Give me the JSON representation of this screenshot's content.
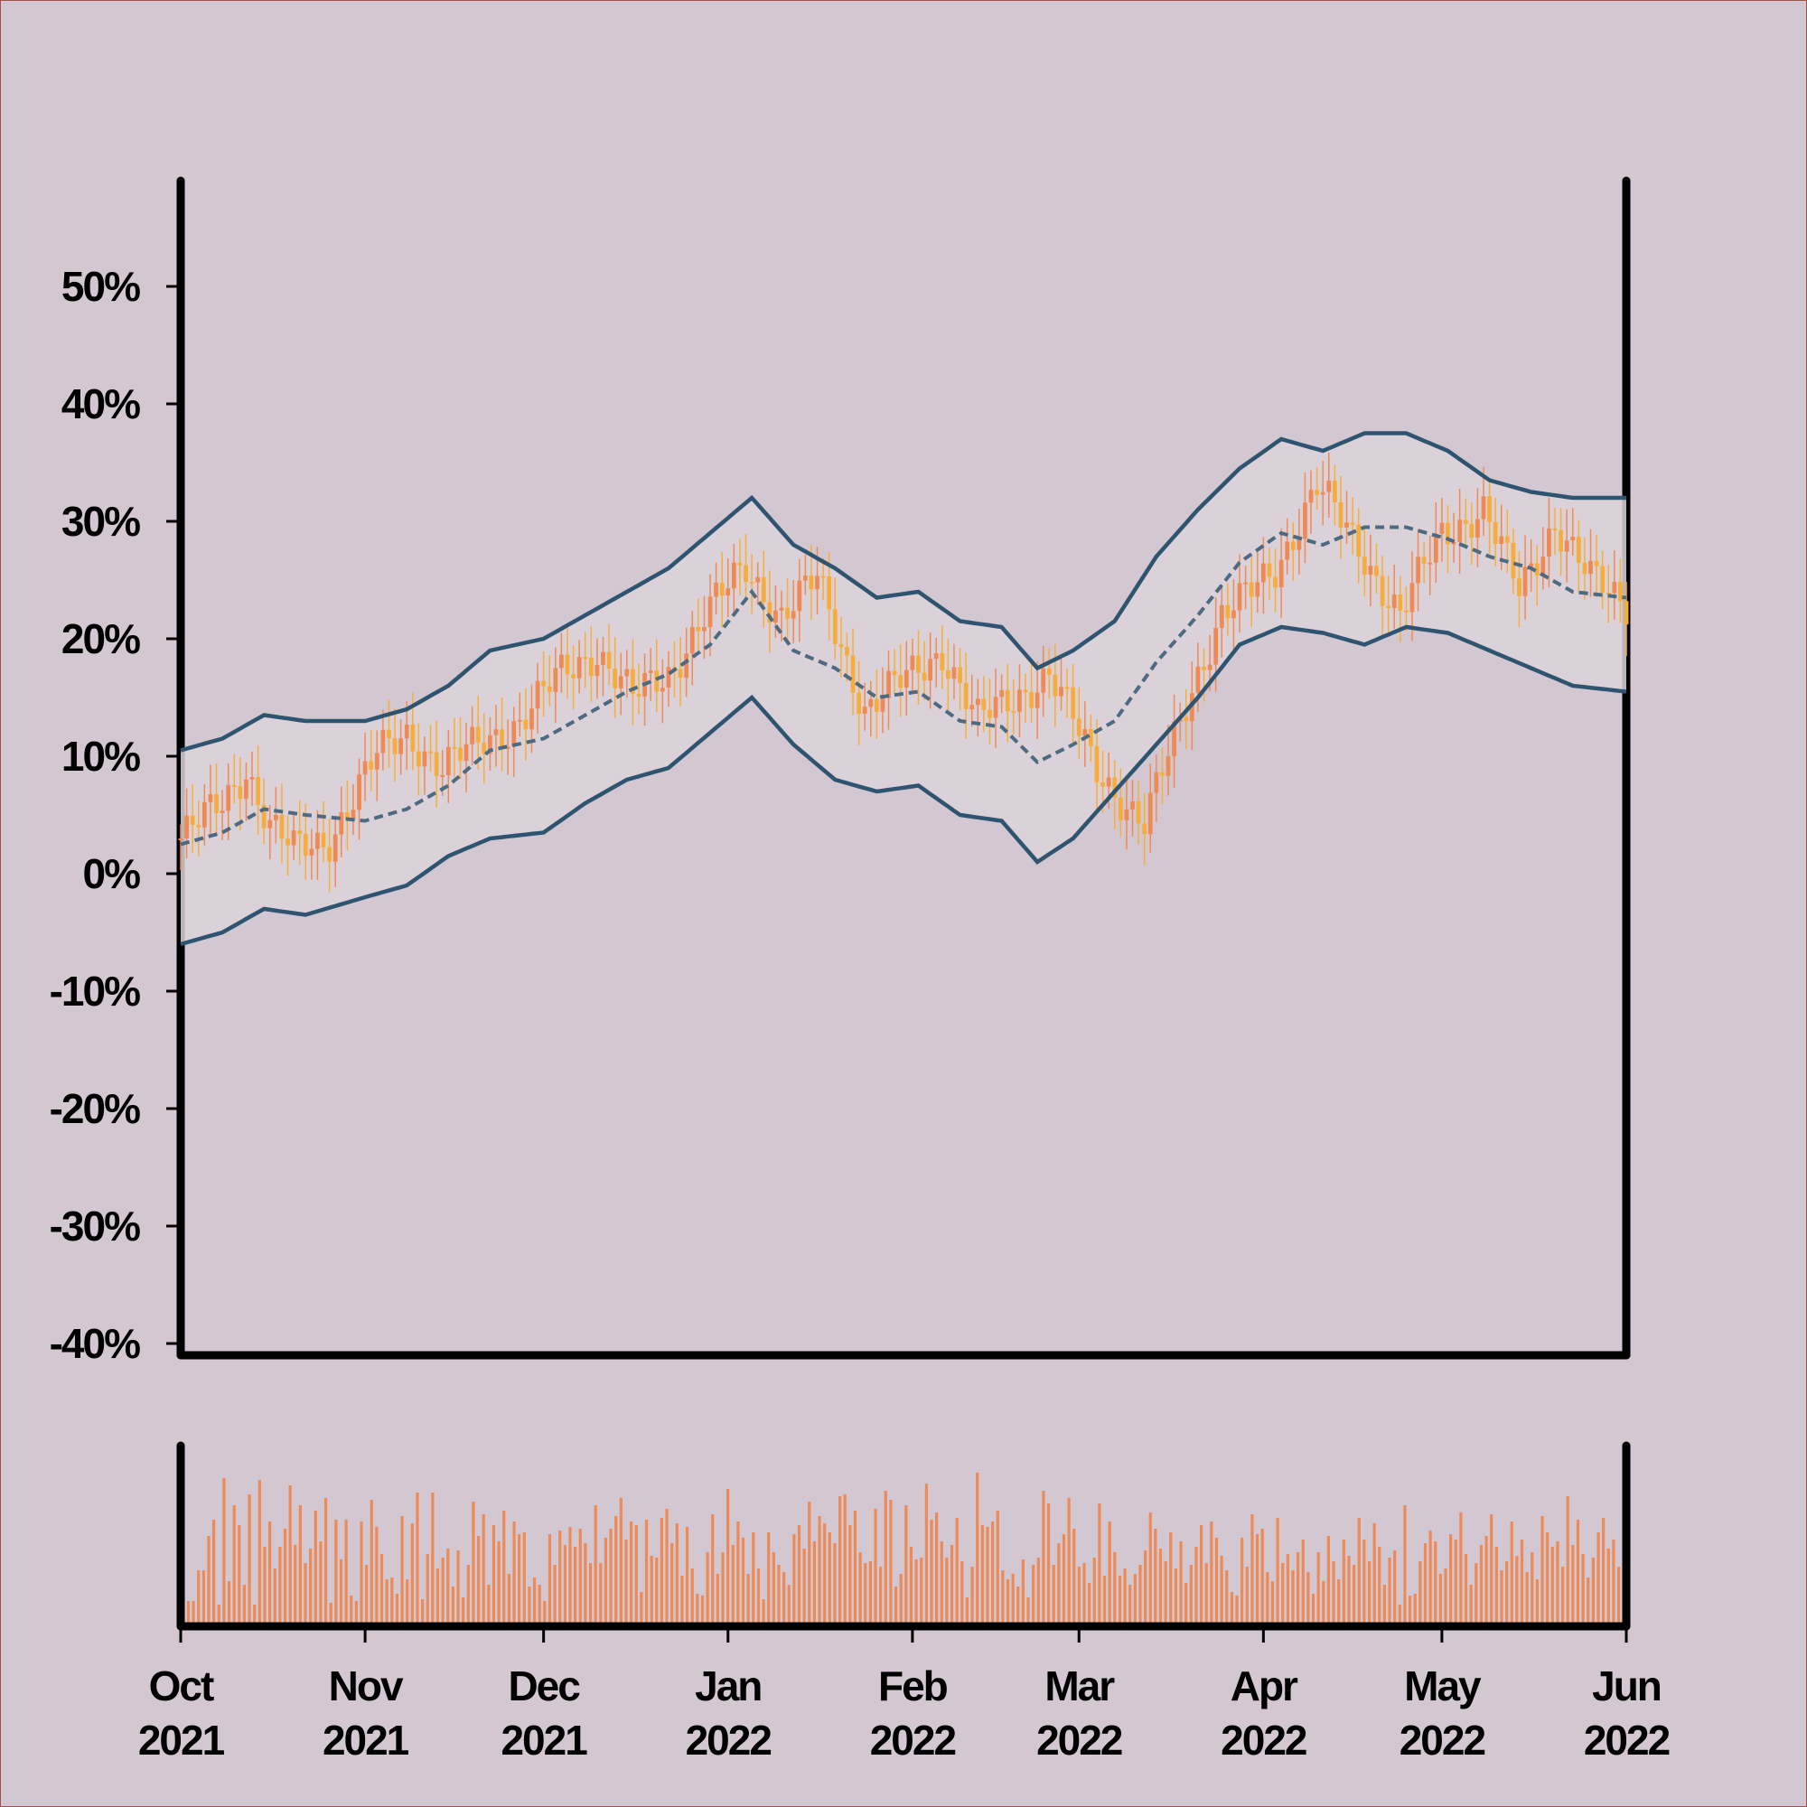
{
  "colors": {
    "background": "#d3c8d2",
    "band_fill": "#dcd4db",
    "band_line": "#2f5470",
    "mid_line": "#4e6a80",
    "candle_up": "#f08a55",
    "candle_down": "#f6ad3c",
    "volume_bar": "#ec8a58",
    "axis": "#000000"
  },
  "chart_data": {
    "type": "candlestick",
    "title": "",
    "xlabel": "",
    "ylabel": "",
    "price_axis": {
      "ylim": [
        -41,
        59
      ],
      "ticks": [
        50,
        40,
        30,
        20,
        10,
        0,
        -10,
        -20,
        -30,
        -40
      ],
      "tick_labels": [
        "50%",
        "40%",
        "30%",
        "20%",
        "10%",
        "0%",
        "-10%",
        "-20%",
        "-30%",
        "-40%"
      ]
    },
    "x_axis": {
      "start": "2021-10-01",
      "end": "2022-06-01",
      "ticks": [
        "2021-10-01",
        "2021-11-01",
        "2021-12-01",
        "2022-01-01",
        "2022-02-01",
        "2022-03-01",
        "2022-04-01",
        "2022-05-01",
        "2022-06-01"
      ],
      "tick_labels": [
        [
          "Oct",
          "2021"
        ],
        [
          "Nov",
          "2021"
        ],
        [
          "Dec",
          "2021"
        ],
        [
          "Jan",
          "2022"
        ],
        [
          "Feb",
          "2022"
        ],
        [
          "Mar",
          "2022"
        ],
        [
          "Apr",
          "2022"
        ],
        [
          "May",
          "2022"
        ],
        [
          "Jun",
          "2022"
        ]
      ]
    },
    "series": [
      {
        "role": "price_close",
        "x": [
          "2021-10-01",
          "2021-10-08",
          "2021-10-12",
          "2021-10-16",
          "2021-10-20",
          "2021-10-26",
          "2021-11-03",
          "2021-11-08",
          "2021-11-14",
          "2021-11-20",
          "2021-11-27",
          "2021-12-04",
          "2021-12-10",
          "2021-12-16",
          "2021-12-22",
          "2021-12-28",
          "2022-01-04",
          "2022-01-10",
          "2022-01-16",
          "2022-01-24",
          "2022-02-01",
          "2022-02-06",
          "2022-02-12",
          "2022-02-18",
          "2022-02-24",
          "2022-03-04",
          "2022-03-12",
          "2022-03-20",
          "2022-03-25",
          "2022-03-28",
          "2022-04-03",
          "2022-04-10",
          "2022-04-18",
          "2022-04-24",
          "2022-05-01",
          "2022-05-08",
          "2022-05-14",
          "2022-05-20",
          "2022-05-26",
          "2022-06-01"
        ],
        "values": [
          3,
          6,
          9,
          4,
          2,
          3,
          10,
          12,
          9,
          11,
          13,
          17,
          19,
          15,
          17,
          22,
          26,
          22,
          25,
          14,
          17,
          19,
          13,
          15,
          17,
          9,
          4,
          16,
          22,
          23,
          26,
          33,
          27,
          22,
          29,
          31,
          24,
          30,
          25,
          23
        ]
      },
      {
        "role": "band_upper",
        "x": [
          "2021-10-01",
          "2021-10-08",
          "2021-10-15",
          "2021-10-22",
          "2021-11-01",
          "2021-11-08",
          "2021-11-15",
          "2021-11-22",
          "2021-12-01",
          "2021-12-08",
          "2021-12-15",
          "2021-12-22",
          "2021-12-29",
          "2022-01-05",
          "2022-01-12",
          "2022-01-19",
          "2022-01-26",
          "2022-02-02",
          "2022-02-09",
          "2022-02-16",
          "2022-02-22",
          "2022-02-28",
          "2022-03-07",
          "2022-03-14",
          "2022-03-21",
          "2022-03-28",
          "2022-04-04",
          "2022-04-11",
          "2022-04-18",
          "2022-04-25",
          "2022-05-02",
          "2022-05-09",
          "2022-05-16",
          "2022-05-23",
          "2022-06-01"
        ],
        "values": [
          10.5,
          11.5,
          13.5,
          13,
          13,
          14,
          16,
          19,
          20,
          22,
          24,
          26,
          29,
          32,
          28,
          26,
          23.5,
          24,
          21.5,
          21,
          17.5,
          19,
          21.5,
          27,
          31,
          34.5,
          37,
          36,
          37.5,
          37.5,
          36,
          33.5,
          32.5,
          32,
          32
        ]
      },
      {
        "role": "band_middle",
        "x": [
          "2021-10-01",
          "2021-10-08",
          "2021-10-15",
          "2021-10-22",
          "2021-11-01",
          "2021-11-08",
          "2021-11-15",
          "2021-11-22",
          "2021-12-01",
          "2021-12-08",
          "2021-12-15",
          "2021-12-22",
          "2021-12-29",
          "2022-01-05",
          "2022-01-12",
          "2022-01-19",
          "2022-01-26",
          "2022-02-02",
          "2022-02-09",
          "2022-02-16",
          "2022-02-22",
          "2022-02-28",
          "2022-03-07",
          "2022-03-14",
          "2022-03-21",
          "2022-03-28",
          "2022-04-04",
          "2022-04-11",
          "2022-04-18",
          "2022-04-25",
          "2022-05-02",
          "2022-05-09",
          "2022-05-16",
          "2022-05-23",
          "2022-06-01"
        ],
        "values": [
          2.5,
          3.5,
          5.5,
          5,
          4.5,
          5.5,
          7.5,
          10.5,
          11.5,
          13.5,
          15.5,
          17,
          19.5,
          24,
          19,
          17.5,
          15,
          15.5,
          13,
          12.5,
          9.5,
          11,
          13,
          18,
          22,
          26.5,
          29,
          28,
          29.5,
          29.5,
          28.5,
          27,
          26,
          24,
          23.5
        ]
      },
      {
        "role": "band_lower",
        "x": [
          "2021-10-01",
          "2021-10-08",
          "2021-10-15",
          "2021-10-22",
          "2021-11-01",
          "2021-11-08",
          "2021-11-15",
          "2021-11-22",
          "2021-12-01",
          "2021-12-08",
          "2021-12-15",
          "2021-12-22",
          "2021-12-29",
          "2022-01-05",
          "2022-01-12",
          "2022-01-19",
          "2022-01-26",
          "2022-02-02",
          "2022-02-09",
          "2022-02-16",
          "2022-02-22",
          "2022-02-28",
          "2022-03-07",
          "2022-03-14",
          "2022-03-21",
          "2022-03-28",
          "2022-04-04",
          "2022-04-11",
          "2022-04-18",
          "2022-04-25",
          "2022-05-02",
          "2022-05-09",
          "2022-05-16",
          "2022-05-23",
          "2022-06-01"
        ],
        "values": [
          -6,
          -5,
          -3,
          -3.5,
          -2,
          -1,
          1.5,
          3,
          3.5,
          6,
          8,
          9,
          12,
          15,
          11,
          8,
          7,
          7.5,
          5,
          4.5,
          1,
          3,
          7,
          11,
          15,
          19.5,
          21,
          20.5,
          19.5,
          21,
          20.5,
          19,
          17.5,
          16,
          15.5
        ]
      }
    ],
    "volume": {
      "x_start": "2021-10-01",
      "x_end": "2022-06-01",
      "relative_max": 1.0,
      "values": [
        0.19,
        0.14,
        0.14,
        0.31,
        0.31,
        0.5,
        0.59,
        0.12,
        0.82,
        0.25,
        0.67,
        0.56,
        0.23,
        0.73,
        0.12,
        0.81,
        0.44,
        0.58,
        0.32,
        0.44,
        0.54,
        0.78,
        0.45,
        0.67,
        0.35,
        0.43,
        0.64,
        0.47,
        0.71,
        0.13,
        0.59,
        0.37,
        0.59,
        0.17,
        0.14,
        0.58,
        0.34,
        0.7,
        0.55,
        0.4,
        0.26,
        0.27,
        0.18,
        0.61,
        0.26,
        0.57,
        0.74,
        0.15,
        0.4,
        0.74,
        0.32,
        0.38,
        0.43,
        0.22,
        0.42,
        0.16,
        0.34,
        0.69,
        0.5,
        0.62,
        0.23,
        0.56,
        0.47,
        0.64,
        0.29,
        0.58,
        0.51,
        0.52,
        0.22,
        0.27,
        0.23,
        0.14,
        0.51,
        0.34,
        0.53,
        0.45,
        0.55,
        0.44,
        0.54,
        0.46,
        0.35,
        0.67,
        0.35,
        0.49,
        0.54,
        0.61,
        0.71,
        0.48,
        0.58,
        0.56,
        0.19,
        0.59,
        0.39,
        0.38,
        0.6,
        0.65,
        0.46,
        0.57,
        0.28,
        0.55,
        0.32,
        0.18,
        0.17,
        0.41,
        0.62,
        0.29,
        0.41,
        0.76,
        0.45,
        0.58,
        0.49,
        0.29,
        0.52,
        0.32,
        0.15,
        0.52,
        0.41,
        0.34,
        0.3,
        0.23,
        0.51,
        0.56,
        0.43,
        0.69,
        0.47,
        0.61,
        0.57,
        0.52,
        0.46,
        0.72,
        0.73,
        0.56,
        0.64,
        0.41,
        0.35,
        0.36,
        0.65,
        0.33,
        0.75,
        0.7,
        0.22,
        0.29,
        0.67,
        0.44,
        0.37,
        0.38,
        0.79,
        0.59,
        0.63,
        0.47,
        0.38,
        0.45,
        0.6,
        0.36,
        0.16,
        0.33,
        0.85,
        0.56,
        0.55,
        0.58,
        0.64,
        0.31,
        0.26,
        0.29,
        0.22,
        0.37,
        0.16,
        0.34,
        0.38,
        0.75,
        0.68,
        0.34,
        0.46,
        0.51,
        0.71,
        0.54,
        0.33,
        0.35,
        0.24,
        0.38,
        0.68,
        0.28,
        0.58,
        0.41,
        0.28,
        0.32,
        0.23,
        0.29,
        0.34,
        0.42,
        0.63,
        0.54,
        0.43,
        0.36,
        0.52,
        0.32,
        0.47,
        0.24,
        0.34,
        0.44,
        0.56,
        0.35,
        0.58,
        0.49,
        0.39,
        0.31,
        0.19,
        0.17,
        0.49,
        0.33,
        0.62,
        0.51,
        0.54,
        0.3,
        0.25,
        0.6,
        0.35,
        0.4,
        0.31,
        0.41,
        0.48,
        0.3,
        0.18,
        0.41,
        0.25,
        0.5,
        0.36,
        0.26,
        0.48,
        0.39,
        0.34,
        0.6,
        0.48,
        0.36,
        0.57,
        0.44,
        0.23,
        0.38,
        0.42,
        0.12,
        0.67,
        0.17,
        0.18,
        0.36,
        0.46,
        0.53,
        0.47,
        0.29,
        0.32,
        0.51,
        0.48,
        0.63,
        0.4,
        0.23,
        0.35,
        0.45,
        0.5,
        0.62,
        0.44,
        0.31,
        0.36,
        0.58,
        0.39,
        0.48,
        0.3,
        0.41,
        0.26,
        0.61,
        0.52,
        0.44,
        0.47,
        0.33,
        0.72,
        0.45,
        0.59,
        0.4,
        0.27,
        0.38,
        0.52,
        0.6,
        0.43,
        0.48,
        0.33,
        0.56
      ]
    }
  }
}
